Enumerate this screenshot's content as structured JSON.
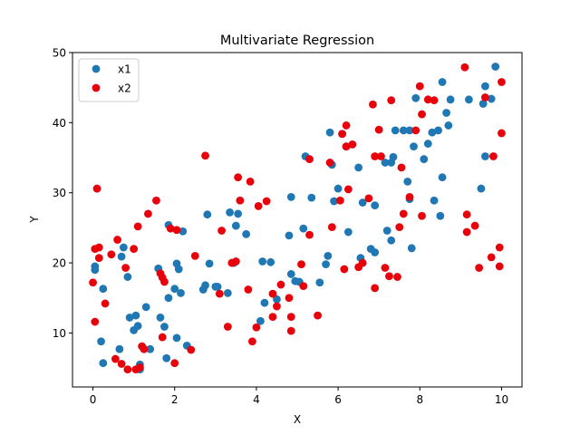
{
  "chart_data": {
    "type": "scatter",
    "title": "Multivariate Regression",
    "xlabel": "X",
    "ylabel": "Y",
    "xlim": [
      -0.5,
      10.5
    ],
    "ylim": [
      2.3,
      50
    ],
    "xticks": [
      0,
      2,
      4,
      6,
      8,
      10
    ],
    "yticks": [
      10,
      20,
      30,
      40,
      50
    ],
    "grid": false,
    "legend_position": "upper-left",
    "series": [
      {
        "name": "x1",
        "color": "#1f77b4",
        "points": [
          [
            0.05,
            19.5
          ],
          [
            0.05,
            19.0
          ],
          [
            0.2,
            8.8
          ],
          [
            0.25,
            16.3
          ],
          [
            0.25,
            5.7
          ],
          [
            0.65,
            7.7
          ],
          [
            0.7,
            20.9
          ],
          [
            0.75,
            22.2
          ],
          [
            0.85,
            18.0
          ],
          [
            0.9,
            12.2
          ],
          [
            1.0,
            10.4
          ],
          [
            1.05,
            12.5
          ],
          [
            1.1,
            11.0
          ],
          [
            1.15,
            5.5
          ],
          [
            1.15,
            4.8
          ],
          [
            1.3,
            13.7
          ],
          [
            1.4,
            7.7
          ],
          [
            1.6,
            19.2
          ],
          [
            1.65,
            12.2
          ],
          [
            1.75,
            10.9
          ],
          [
            1.8,
            6.4
          ],
          [
            1.85,
            15.0
          ],
          [
            1.85,
            25.4
          ],
          [
            2.0,
            16.3
          ],
          [
            2.05,
            9.3
          ],
          [
            2.05,
            19.9
          ],
          [
            2.1,
            19.1
          ],
          [
            2.15,
            15.7
          ],
          [
            2.2,
            24.5
          ],
          [
            2.3,
            8.2
          ],
          [
            2.7,
            16.2
          ],
          [
            2.75,
            16.8
          ],
          [
            2.8,
            26.9
          ],
          [
            2.85,
            19.9
          ],
          [
            3.0,
            16.6
          ],
          [
            3.05,
            16.6
          ],
          [
            3.3,
            15.7
          ],
          [
            3.35,
            27.2
          ],
          [
            3.45,
            20.0
          ],
          [
            3.5,
            25.3
          ],
          [
            3.55,
            27.0
          ],
          [
            3.75,
            24.1
          ],
          [
            4.1,
            11.7
          ],
          [
            4.15,
            20.2
          ],
          [
            4.2,
            14.3
          ],
          [
            4.35,
            20.1
          ],
          [
            4.5,
            14.8
          ],
          [
            4.8,
            23.9
          ],
          [
            4.85,
            29.4
          ],
          [
            4.85,
            18.4
          ],
          [
            4.95,
            17.4
          ],
          [
            5.05,
            17.3
          ],
          [
            5.15,
            24.9
          ],
          [
            5.2,
            35.2
          ],
          [
            5.35,
            29.3
          ],
          [
            5.55,
            17.2
          ],
          [
            5.7,
            19.8
          ],
          [
            5.75,
            21.0
          ],
          [
            5.8,
            38.6
          ],
          [
            5.85,
            34.0
          ],
          [
            5.9,
            28.8
          ],
          [
            6.0,
            30.6
          ],
          [
            6.1,
            38.4
          ],
          [
            6.2,
            36.6
          ],
          [
            6.25,
            24.4
          ],
          [
            6.5,
            33.6
          ],
          [
            6.55,
            20.7
          ],
          [
            6.6,
            28.6
          ],
          [
            6.8,
            22.0
          ],
          [
            6.9,
            21.5
          ],
          [
            6.9,
            28.2
          ],
          [
            7.15,
            34.3
          ],
          [
            7.2,
            24.6
          ],
          [
            7.3,
            34.3
          ],
          [
            7.3,
            23.2
          ],
          [
            7.35,
            35.1
          ],
          [
            7.4,
            38.9
          ],
          [
            7.6,
            38.9
          ],
          [
            7.7,
            31.6
          ],
          [
            7.75,
            38.9
          ],
          [
            7.75,
            29.1
          ],
          [
            7.8,
            22.1
          ],
          [
            7.85,
            36.6
          ],
          [
            7.9,
            43.5
          ],
          [
            8.1,
            34.8
          ],
          [
            8.2,
            37.0
          ],
          [
            8.3,
            38.6
          ],
          [
            8.35,
            28.9
          ],
          [
            8.45,
            38.9
          ],
          [
            8.5,
            26.7
          ],
          [
            8.55,
            32.2
          ],
          [
            8.55,
            45.8
          ],
          [
            8.65,
            41.4
          ],
          [
            8.7,
            39.6
          ],
          [
            8.75,
            43.3
          ],
          [
            9.2,
            43.3
          ],
          [
            9.5,
            30.6
          ],
          [
            9.55,
            42.7
          ],
          [
            9.6,
            35.2
          ],
          [
            9.6,
            45.2
          ],
          [
            9.75,
            43.4
          ],
          [
            9.85,
            48.0
          ]
        ]
      },
      {
        "name": "x2",
        "color": "#e8000b",
        "points": [
          [
            0.0,
            17.2
          ],
          [
            0.05,
            22.0
          ],
          [
            0.05,
            11.6
          ],
          [
            0.1,
            30.6
          ],
          [
            0.15,
            22.2
          ],
          [
            0.15,
            20.7
          ],
          [
            0.3,
            14.2
          ],
          [
            0.45,
            21.2
          ],
          [
            0.55,
            6.3
          ],
          [
            0.6,
            23.3
          ],
          [
            0.7,
            5.6
          ],
          [
            0.8,
            19.3
          ],
          [
            0.85,
            4.8
          ],
          [
            1.0,
            22.0
          ],
          [
            1.05,
            4.8
          ],
          [
            1.1,
            25.2
          ],
          [
            1.15,
            5.1
          ],
          [
            1.2,
            8.1
          ],
          [
            1.25,
            7.7
          ],
          [
            1.35,
            27.0
          ],
          [
            1.55,
            28.9
          ],
          [
            1.65,
            18.5
          ],
          [
            1.7,
            17.9
          ],
          [
            1.7,
            9.4
          ],
          [
            1.75,
            17.3
          ],
          [
            1.9,
            24.9
          ],
          [
            2.05,
            24.7
          ],
          [
            2.0,
            5.7
          ],
          [
            2.4,
            7.6
          ],
          [
            2.5,
            21.0
          ],
          [
            2.75,
            35.3
          ],
          [
            3.1,
            15.6
          ],
          [
            3.15,
            24.6
          ],
          [
            3.3,
            10.9
          ],
          [
            3.4,
            20.0
          ],
          [
            3.5,
            20.2
          ],
          [
            3.55,
            32.2
          ],
          [
            3.6,
            28.9
          ],
          [
            3.8,
            16.2
          ],
          [
            3.85,
            31.6
          ],
          [
            3.9,
            8.8
          ],
          [
            4.0,
            10.8
          ],
          [
            4.05,
            28.1
          ],
          [
            4.25,
            28.8
          ],
          [
            4.4,
            12.3
          ],
          [
            4.4,
            15.6
          ],
          [
            4.5,
            13.8
          ],
          [
            4.6,
            16.9
          ],
          [
            4.8,
            15.0
          ],
          [
            4.85,
            10.3
          ],
          [
            4.85,
            12.3
          ],
          [
            5.1,
            19.8
          ],
          [
            5.15,
            16.7
          ],
          [
            5.3,
            34.8
          ],
          [
            5.3,
            24.0
          ],
          [
            5.5,
            12.5
          ],
          [
            5.8,
            34.3
          ],
          [
            5.85,
            25.1
          ],
          [
            6.05,
            28.9
          ],
          [
            6.1,
            38.4
          ],
          [
            6.15,
            19.1
          ],
          [
            6.2,
            39.6
          ],
          [
            6.2,
            36.6
          ],
          [
            6.25,
            30.5
          ],
          [
            6.35,
            36.9
          ],
          [
            6.5,
            19.4
          ],
          [
            6.6,
            20.0
          ],
          [
            6.75,
            29.2
          ],
          [
            6.85,
            42.6
          ],
          [
            6.9,
            35.2
          ],
          [
            6.9,
            16.4
          ],
          [
            7.0,
            39.0
          ],
          [
            7.05,
            35.2
          ],
          [
            7.15,
            19.3
          ],
          [
            7.25,
            18.1
          ],
          [
            7.3,
            43.2
          ],
          [
            7.45,
            18.0
          ],
          [
            7.5,
            25.1
          ],
          [
            7.55,
            33.6
          ],
          [
            7.6,
            27.0
          ],
          [
            7.75,
            29.4
          ],
          [
            7.9,
            38.9
          ],
          [
            8.0,
            45.2
          ],
          [
            8.05,
            41.2
          ],
          [
            8.05,
            26.7
          ],
          [
            8.2,
            43.3
          ],
          [
            8.35,
            43.2
          ],
          [
            9.1,
            47.9
          ],
          [
            9.15,
            26.9
          ],
          [
            9.15,
            24.4
          ],
          [
            9.35,
            25.3
          ],
          [
            9.45,
            19.3
          ],
          [
            9.6,
            43.6
          ],
          [
            9.75,
            20.8
          ],
          [
            9.8,
            35.2
          ],
          [
            9.95,
            22.2
          ],
          [
            9.95,
            19.5
          ],
          [
            10.0,
            38.5
          ],
          [
            10.0,
            45.8
          ]
        ]
      }
    ]
  }
}
